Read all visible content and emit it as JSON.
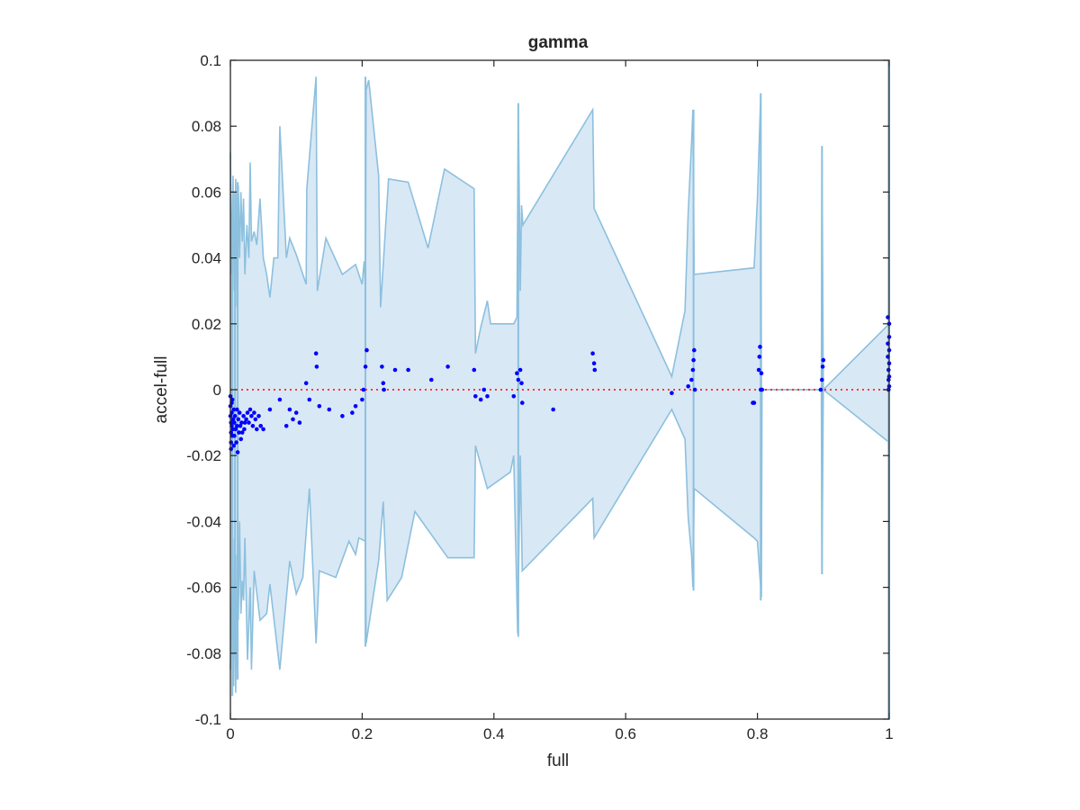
{
  "chart_data": {
    "type": "scatter",
    "title": "gamma",
    "xlabel": "full",
    "ylabel": "accel-full",
    "xlim": [
      0,
      1
    ],
    "ylim": [
      -0.1,
      0.1
    ],
    "xticks": [
      "0",
      "0.2",
      "0.4",
      "0.6",
      "0.8",
      "1"
    ],
    "yticks": [
      "-0.1",
      "-0.08",
      "-0.06",
      "-0.04",
      "-0.02",
      "0",
      "0.02",
      "0.04",
      "0.06",
      "0.08",
      "0.1"
    ],
    "grid": false,
    "zero_line": {
      "y": 0,
      "style": "dotted",
      "color": "#ff0000"
    },
    "band": {
      "fill": "#d9e8f5",
      "edge": "#8cc0de",
      "upper": [
        [
          0,
          0.072
        ],
        [
          0.002,
          0.035
        ],
        [
          0.004,
          0.065
        ],
        [
          0.006,
          0.03
        ],
        [
          0.008,
          0.064
        ],
        [
          0.01,
          0.025
        ],
        [
          0.012,
          0.062
        ],
        [
          0.014,
          0.04
        ],
        [
          0.016,
          0.06
        ],
        [
          0.018,
          0.045
        ],
        [
          0.02,
          0.058
        ],
        [
          0.022,
          0.035
        ],
        [
          0.025,
          0.05
        ],
        [
          0.028,
          0.04
        ],
        [
          0.03,
          0.069
        ],
        [
          0.032,
          0.045
        ],
        [
          0.036,
          0.048
        ],
        [
          0.04,
          0.044
        ],
        [
          0.045,
          0.058
        ],
        [
          0.05,
          0.04
        ],
        [
          0.055,
          0.035
        ],
        [
          0.06,
          0.028
        ],
        [
          0.066,
          0.04
        ],
        [
          0.072,
          0.04
        ],
        [
          0.075,
          0.08
        ],
        [
          0.085,
          0.04
        ],
        [
          0.09,
          0.046
        ],
        [
          0.1,
          0.041
        ],
        [
          0.115,
          0.032
        ],
        [
          0.116,
          0.061
        ],
        [
          0.13,
          0.095
        ],
        [
          0.132,
          0.03
        ],
        [
          0.145,
          0.046
        ],
        [
          0.17,
          0.035
        ],
        [
          0.19,
          0.038
        ],
        [
          0.2,
          0.032
        ],
        [
          0.203,
          0.039
        ],
        [
          0.205,
          0.031
        ],
        [
          0.206,
          0.091
        ],
        [
          0.21,
          0.094
        ],
        [
          0.225,
          0.065
        ],
        [
          0.228,
          0.025
        ],
        [
          0.24,
          0.064
        ],
        [
          0.27,
          0.063
        ],
        [
          0.3,
          0.043
        ],
        [
          0.325,
          0.067
        ],
        [
          0.37,
          0.061
        ],
        [
          0.372,
          0.011
        ],
        [
          0.38,
          0.019
        ],
        [
          0.39,
          0.027
        ],
        [
          0.395,
          0.02
        ],
        [
          0.43,
          0.02
        ],
        [
          0.435,
          0.022
        ],
        [
          0.437,
          0.086
        ],
        [
          0.44,
          0.03
        ],
        [
          0.442,
          0.056
        ],
        [
          0.444,
          0.05
        ],
        [
          0.55,
          0.085
        ],
        [
          0.552,
          0.055
        ],
        [
          0.67,
          0.004
        ],
        [
          0.69,
          0.024
        ],
        [
          0.695,
          0.054
        ],
        [
          0.7,
          0.075
        ],
        [
          0.702,
          0.085
        ],
        [
          0.704,
          0.035
        ],
        [
          0.795,
          0.037
        ],
        [
          0.8,
          0.058
        ],
        [
          0.805,
          0.09
        ],
        [
          0.806,
          0.001
        ],
        [
          0.807,
          0
        ],
        [
          0.897,
          0
        ],
        [
          0.898,
          0.073
        ],
        [
          0.9,
          0
        ],
        [
          1,
          0.02
        ]
      ],
      "lower": [
        [
          0,
          -0.085
        ],
        [
          0.003,
          -0.055
        ],
        [
          0.005,
          -0.09
        ],
        [
          0.006,
          -0.045
        ],
        [
          0.008,
          -0.092
        ],
        [
          0.01,
          -0.05
        ],
        [
          0.012,
          -0.07
        ],
        [
          0.014,
          -0.04
        ],
        [
          0.016,
          -0.068
        ],
        [
          0.018,
          -0.058
        ],
        [
          0.02,
          -0.064
        ],
        [
          0.022,
          -0.045
        ],
        [
          0.026,
          -0.082
        ],
        [
          0.03,
          -0.06
        ],
        [
          0.032,
          -0.085
        ],
        [
          0.036,
          -0.055
        ],
        [
          0.045,
          -0.07
        ],
        [
          0.055,
          -0.068
        ],
        [
          0.06,
          -0.059
        ],
        [
          0.075,
          -0.085
        ],
        [
          0.09,
          -0.052
        ],
        [
          0.1,
          -0.062
        ],
        [
          0.11,
          -0.057
        ],
        [
          0.12,
          -0.03
        ],
        [
          0.13,
          -0.077
        ],
        [
          0.135,
          -0.055
        ],
        [
          0.16,
          -0.057
        ],
        [
          0.18,
          -0.046
        ],
        [
          0.19,
          -0.05
        ],
        [
          0.195,
          -0.045
        ],
        [
          0.205,
          -0.046
        ],
        [
          0.206,
          -0.077
        ],
        [
          0.225,
          -0.052
        ],
        [
          0.232,
          -0.034
        ],
        [
          0.238,
          -0.064
        ],
        [
          0.26,
          -0.057
        ],
        [
          0.28,
          -0.037
        ],
        [
          0.33,
          -0.051
        ],
        [
          0.37,
          -0.051
        ],
        [
          0.372,
          -0.017
        ],
        [
          0.39,
          -0.03
        ],
        [
          0.425,
          -0.025
        ],
        [
          0.43,
          -0.02
        ],
        [
          0.436,
          -0.074
        ],
        [
          0.44,
          -0.02
        ],
        [
          0.443,
          -0.055
        ],
        [
          0.55,
          -0.033
        ],
        [
          0.552,
          -0.045
        ],
        [
          0.67,
          -0.006
        ],
        [
          0.69,
          -0.015
        ],
        [
          0.695,
          -0.039
        ],
        [
          0.7,
          -0.05
        ],
        [
          0.702,
          -0.06
        ],
        [
          0.704,
          -0.03
        ],
        [
          0.795,
          -0.045
        ],
        [
          0.8,
          -0.046
        ],
        [
          0.806,
          -0.063
        ],
        [
          0.807,
          0
        ],
        [
          0.897,
          0
        ],
        [
          0.898,
          -0.056
        ],
        [
          0.9,
          0
        ],
        [
          1,
          -0.016
        ]
      ],
      "spikes": [
        [
          0.003,
          0.05,
          -0.093
        ],
        [
          0.007,
          0.06,
          -0.08
        ],
        [
          0.011,
          0.063,
          -0.088
        ],
        [
          0.205,
          0.095,
          -0.078
        ],
        [
          0.437,
          0.087,
          -0.075
        ],
        [
          0.703,
          0.085,
          -0.061
        ],
        [
          0.805,
          0.09,
          -0.064
        ],
        [
          0.898,
          0.074,
          -0.056
        ],
        [
          0.999,
          0.1,
          -0.1
        ]
      ]
    },
    "series": [
      {
        "color": "#0000ff",
        "points": [
          [
            0.0,
            -0.002
          ],
          [
            0.0,
            -0.005
          ],
          [
            0.0,
            -0.008
          ],
          [
            0.001,
            -0.01
          ],
          [
            0.001,
            -0.013
          ],
          [
            0.001,
            -0.016
          ],
          [
            0.001,
            -0.018
          ],
          [
            0.002,
            -0.004
          ],
          [
            0.002,
            -0.007
          ],
          [
            0.002,
            -0.011
          ],
          [
            0.003,
            -0.014
          ],
          [
            0.003,
            -0.003
          ],
          [
            0.004,
            -0.009
          ],
          [
            0.004,
            -0.012
          ],
          [
            0.005,
            -0.017
          ],
          [
            0.005,
            -0.006
          ],
          [
            0.006,
            -0.01
          ],
          [
            0.006,
            -0.014
          ],
          [
            0.007,
            -0.008
          ],
          [
            0.008,
            -0.012
          ],
          [
            0.009,
            -0.016
          ],
          [
            0.01,
            -0.006
          ],
          [
            0.01,
            -0.011
          ],
          [
            0.011,
            -0.019
          ],
          [
            0.012,
            -0.009
          ],
          [
            0.013,
            -0.013
          ],
          [
            0.014,
            -0.007
          ],
          [
            0.015,
            -0.011
          ],
          [
            0.016,
            -0.015
          ],
          [
            0.017,
            -0.01
          ],
          [
            0.018,
            -0.013
          ],
          [
            0.02,
            -0.008
          ],
          [
            0.021,
            -0.012
          ],
          [
            0.022,
            -0.01
          ],
          [
            0.024,
            -0.009
          ],
          [
            0.026,
            -0.007
          ],
          [
            0.028,
            -0.01
          ],
          [
            0.03,
            -0.006
          ],
          [
            0.032,
            -0.008
          ],
          [
            0.034,
            -0.011
          ],
          [
            0.036,
            -0.007
          ],
          [
            0.038,
            -0.009
          ],
          [
            0.04,
            -0.012
          ],
          [
            0.043,
            -0.008
          ],
          [
            0.046,
            -0.011
          ],
          [
            0.05,
            -0.012
          ],
          [
            0.06,
            -0.006
          ],
          [
            0.075,
            -0.003
          ],
          [
            0.085,
            -0.011
          ],
          [
            0.09,
            -0.006
          ],
          [
            0.095,
            -0.009
          ],
          [
            0.1,
            -0.007
          ],
          [
            0.105,
            -0.01
          ],
          [
            0.115,
            0.002
          ],
          [
            0.12,
            -0.003
          ],
          [
            0.13,
            0.011
          ],
          [
            0.131,
            0.007
          ],
          [
            0.135,
            -0.005
          ],
          [
            0.15,
            -0.006
          ],
          [
            0.17,
            -0.008
          ],
          [
            0.185,
            -0.007
          ],
          [
            0.19,
            -0.005
          ],
          [
            0.2,
            -0.003
          ],
          [
            0.202,
            0.0
          ],
          [
            0.205,
            0.007
          ],
          [
            0.207,
            0.012
          ],
          [
            0.23,
            0.007
          ],
          [
            0.232,
            0.002
          ],
          [
            0.233,
            0.0
          ],
          [
            0.25,
            0.006
          ],
          [
            0.27,
            0.006
          ],
          [
            0.305,
            0.003
          ],
          [
            0.33,
            0.007
          ],
          [
            0.37,
            0.006
          ],
          [
            0.372,
            -0.002
          ],
          [
            0.38,
            -0.003
          ],
          [
            0.385,
            0.0
          ],
          [
            0.39,
            -0.002
          ],
          [
            0.43,
            -0.002
          ],
          [
            0.435,
            0.005
          ],
          [
            0.437,
            0.003
          ],
          [
            0.44,
            0.006
          ],
          [
            0.442,
            0.002
          ],
          [
            0.443,
            -0.004
          ],
          [
            0.49,
            -0.006
          ],
          [
            0.55,
            0.011
          ],
          [
            0.552,
            0.008
          ],
          [
            0.553,
            0.006
          ],
          [
            0.67,
            -0.001
          ],
          [
            0.695,
            0.001
          ],
          [
            0.7,
            0.003
          ],
          [
            0.702,
            0.006
          ],
          [
            0.703,
            0.009
          ],
          [
            0.704,
            0.012
          ],
          [
            0.705,
            0.0
          ],
          [
            0.793,
            -0.004
          ],
          [
            0.795,
            -0.004
          ],
          [
            0.802,
            0.006
          ],
          [
            0.803,
            0.01
          ],
          [
            0.804,
            0.013
          ],
          [
            0.805,
            0.0
          ],
          [
            0.806,
            0.005
          ],
          [
            0.807,
            0.0
          ],
          [
            0.896,
            0.0
          ],
          [
            0.898,
            0.003
          ],
          [
            0.899,
            0.007
          ],
          [
            0.9,
            0.009
          ],
          [
            0.998,
            0.022
          ],
          [
            0.998,
            0.014
          ],
          [
            0.998,
            0.01
          ],
          [
            0.999,
            0.006
          ],
          [
            0.999,
            0.003
          ],
          [
            0.999,
            0.0
          ],
          [
            1.0,
            0.012
          ],
          [
            1.0,
            0.008
          ],
          [
            1.0,
            0.004
          ],
          [
            1.0,
            0.001
          ],
          [
            1.0,
            0.02
          ],
          [
            1.0,
            0.016
          ]
        ]
      }
    ]
  }
}
